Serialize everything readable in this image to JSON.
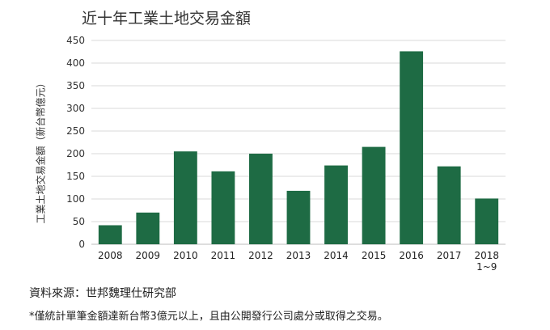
{
  "chart_data": {
    "type": "bar",
    "title": "近十年工業土地交易金額",
    "xlabel": "",
    "ylabel": "工業土地交易金額（新台幣億元）",
    "categories": [
      "2008",
      "2009",
      "2010",
      "2011",
      "2012",
      "2013",
      "2014",
      "2015",
      "2016",
      "2017",
      "2018\n1~9"
    ],
    "values": [
      42,
      70,
      205,
      161,
      200,
      118,
      174,
      215,
      426,
      172,
      101
    ],
    "ylim": [
      0,
      450
    ],
    "yticks": [
      0,
      50,
      100,
      150,
      200,
      250,
      300,
      350,
      400,
      450
    ],
    "grid": true,
    "bar_color": "#1e6b44"
  },
  "footer": {
    "source": "資料來源：世邦魏理仕研究部",
    "note": "*僅統計單筆金額達新台幣3億元以上，且由公開發行公司處分或取得之交易。"
  }
}
